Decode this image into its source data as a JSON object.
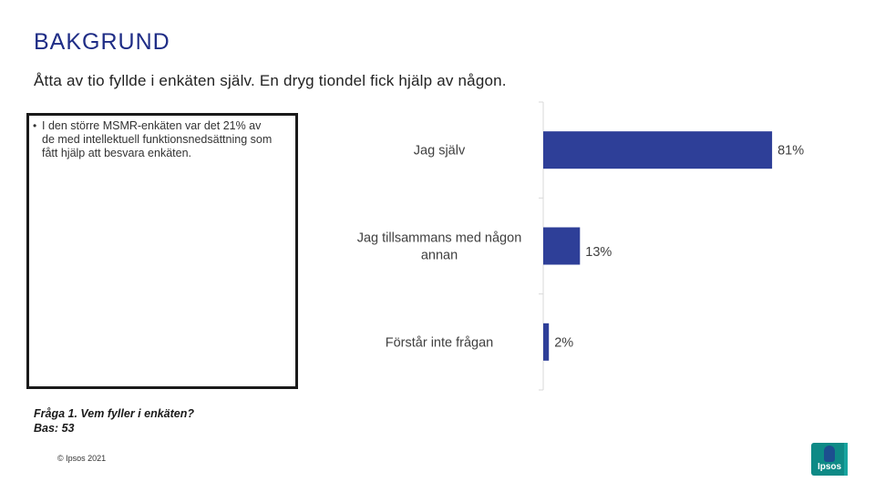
{
  "header": {
    "title": "BAKGRUND",
    "subtitle": "Åtta av tio fyllde i enkäten själv. En dryg tiondel fick hjälp av någon."
  },
  "note": {
    "bullet": "•",
    "text": "I den större MSMR-enkäten var det 21% av de med intellektuell funktionsnedsättning som fått hjälp att besvara enkäten."
  },
  "footer": {
    "question": "Fråga 1. Vem fyller i enkäten?",
    "base": "Bas: 53",
    "copyright": "© Ipsos 2021",
    "logo_text": "Ipsos"
  },
  "colors": {
    "bar": "#2e3f98",
    "axis": "#d9d9d9"
  },
  "chart_data": {
    "type": "bar",
    "orientation": "horizontal",
    "categories": [
      "Jag själv",
      "Jag tillsammans med någon annan",
      "Förstår inte frågan"
    ],
    "category_lines": [
      [
        "Jag själv"
      ],
      [
        "Jag tillsammans med någon",
        "annan"
      ],
      [
        "Förstår inte frågan"
      ]
    ],
    "values": [
      81,
      13,
      2
    ],
    "value_labels": [
      "81%",
      "13%",
      "2%"
    ],
    "xlim": [
      0,
      100
    ],
    "grid": false,
    "legend": "none"
  }
}
